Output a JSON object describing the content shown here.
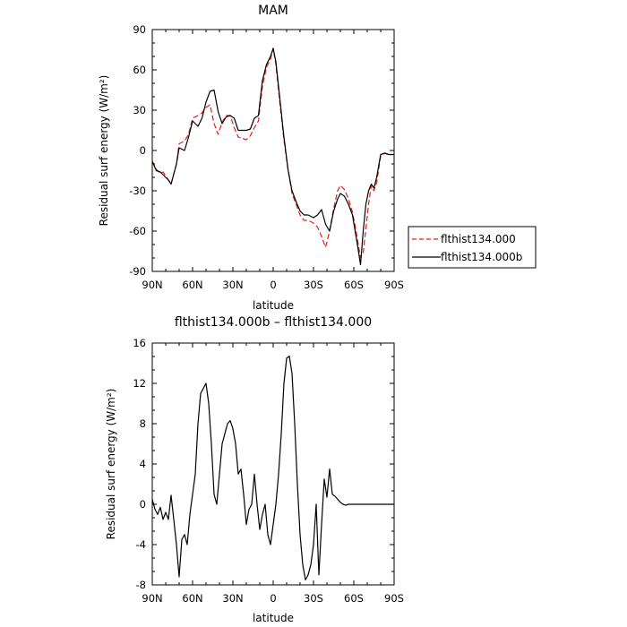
{
  "chart_data": [
    {
      "type": "line",
      "title": "MAM",
      "xlabel": "latitude",
      "ylabel": "Residual surf energy (W/m²)",
      "x_ticks": [
        "90N",
        "60N",
        "30N",
        "0",
        "30S",
        "60S",
        "90S"
      ],
      "x_tick_values": [
        90,
        60,
        30,
        0,
        -30,
        -60,
        -90
      ],
      "y_ticks": [
        -90,
        -60,
        -30,
        0,
        30,
        60,
        90
      ],
      "xlim": [
        90,
        -90
      ],
      "ylim": [
        -90,
        90
      ],
      "grid": false,
      "legend": "right, outside plot",
      "series": [
        {
          "name": "flthist134.000",
          "color": "#e0201b",
          "dash": true,
          "x": [
            90,
            87,
            84,
            82,
            78,
            76,
            72,
            70,
            66,
            63,
            60,
            56,
            53,
            50,
            47,
            44,
            41,
            38,
            35,
            32,
            29,
            26,
            23,
            20,
            17,
            14,
            11,
            8,
            5,
            2,
            0,
            -2,
            -5,
            -8,
            -11,
            -14,
            -17,
            -20,
            -23,
            -26,
            -30,
            -33,
            -36,
            -39,
            -42,
            -45,
            -48,
            -50,
            -53,
            -56,
            -59,
            -61,
            -63,
            -65,
            -67,
            -69,
            -71,
            -73,
            -75,
            -77,
            -80,
            -83,
            -86,
            -90
          ],
          "y": [
            -8,
            -14,
            -17,
            -16,
            -22,
            -25,
            -10,
            5,
            7,
            12,
            24,
            26,
            28,
            32,
            34,
            20,
            12,
            21,
            26,
            26,
            17,
            10,
            9,
            8,
            11,
            17,
            22,
            48,
            62,
            68,
            76,
            64,
            35,
            8,
            -14,
            -32,
            -40,
            -48,
            -52,
            -52,
            -54,
            -57,
            -64,
            -72,
            -60,
            -43,
            -30,
            -26,
            -29,
            -36,
            -46,
            -56,
            -68,
            -80,
            -76,
            -58,
            -40,
            -26,
            -30,
            -24,
            -4,
            -2,
            -3,
            -3
          ]
        },
        {
          "name": "flthist134.000b",
          "color": "#000000",
          "dash": false,
          "x": [
            90,
            87,
            84,
            82,
            78,
            76,
            72,
            70,
            66,
            63,
            60,
            56,
            53,
            50,
            47,
            44,
            41,
            38,
            35,
            32,
            29,
            26,
            23,
            20,
            17,
            14,
            11,
            8,
            5,
            2,
            0,
            -2,
            -5,
            -8,
            -11,
            -14,
            -17,
            -20,
            -23,
            -26,
            -30,
            -33,
            -36,
            -39,
            -42,
            -45,
            -48,
            -50,
            -53,
            -56,
            -59,
            -61,
            -63,
            -65,
            -67,
            -69,
            -71,
            -73,
            -75,
            -77,
            -80,
            -83,
            -86,
            -90
          ],
          "y": [
            -8,
            -15,
            -16,
            -18,
            -22,
            -25,
            -10,
            2,
            0,
            10,
            22,
            18,
            24,
            36,
            44,
            45,
            29,
            20,
            25,
            26,
            24,
            15,
            15,
            15,
            16,
            24,
            26,
            52,
            64,
            70,
            76,
            66,
            38,
            10,
            -14,
            -30,
            -38,
            -45,
            -48,
            -48,
            -50,
            -48,
            -44,
            -55,
            -60,
            -45,
            -36,
            -32,
            -34,
            -40,
            -48,
            -60,
            -72,
            -85,
            -60,
            -40,
            -30,
            -25,
            -28,
            -20,
            -3,
            -2,
            -3,
            -3
          ]
        }
      ]
    },
    {
      "type": "line",
      "title": "flthist134.000b – flthist134.000",
      "xlabel": "latitude",
      "ylabel": "Residual surf energy (W/m²)",
      "x_ticks": [
        "90N",
        "60N",
        "30N",
        "0",
        "30S",
        "60S",
        "90S"
      ],
      "x_tick_values": [
        90,
        60,
        30,
        0,
        -30,
        -60,
        -90
      ],
      "y_ticks": [
        -8,
        -4,
        0,
        4,
        8,
        12,
        16
      ],
      "xlim": [
        90,
        -90
      ],
      "ylim": [
        -8,
        16
      ],
      "grid": false,
      "series": [
        {
          "color": "#000000",
          "dash": false,
          "x": [
            90,
            88,
            86,
            84,
            82,
            80,
            78,
            76,
            74,
            72,
            70,
            68,
            66,
            64,
            62,
            60,
            58,
            56,
            54,
            52,
            50,
            48,
            46,
            44,
            42,
            40,
            38,
            36,
            34,
            32,
            30,
            28,
            26,
            24,
            22,
            20,
            18,
            16,
            14,
            12,
            10,
            8,
            6,
            4,
            2,
            0,
            -2,
            -4,
            -6,
            -8,
            -10,
            -12,
            -14,
            -16,
            -18,
            -20,
            -22,
            -24,
            -26,
            -28,
            -30,
            -32,
            -34,
            -36,
            -38,
            -40,
            -42,
            -44,
            -46,
            -48,
            -50,
            -52,
            -54,
            -56,
            -58,
            -60,
            -62,
            -64,
            -66,
            -68,
            -70,
            -72,
            -74,
            -76,
            -78,
            -80,
            -82,
            -84,
            -86,
            -88,
            -90
          ],
          "y": [
            0.5,
            -0.5,
            -1,
            -0.3,
            -1.5,
            -0.8,
            -1.5,
            0.9,
            -1.5,
            -4,
            -7.2,
            -3.5,
            -3,
            -4,
            -1,
            1,
            3,
            8,
            11,
            11.5,
            12,
            10,
            6,
            1,
            0,
            3,
            6,
            7,
            8,
            8.3,
            7.5,
            6,
            3,
            3.5,
            1,
            -2,
            -0.5,
            0,
            3,
            0,
            -2.5,
            -1,
            0,
            -3,
            -4,
            -2,
            0,
            3,
            7,
            12,
            14.5,
            14.7,
            13,
            8,
            2,
            -3,
            -6,
            -7.5,
            -7,
            -6,
            -4,
            0,
            -7,
            -2,
            2.5,
            0.7,
            3.5,
            1,
            0.8,
            0.5,
            0.2,
            0,
            -0.1,
            0,
            0,
            0,
            0,
            0,
            0,
            0,
            0,
            0,
            0,
            0,
            0,
            0,
            0,
            0,
            0,
            0,
            0
          ],
          "x_trim_note": ""
        }
      ]
    }
  ]
}
